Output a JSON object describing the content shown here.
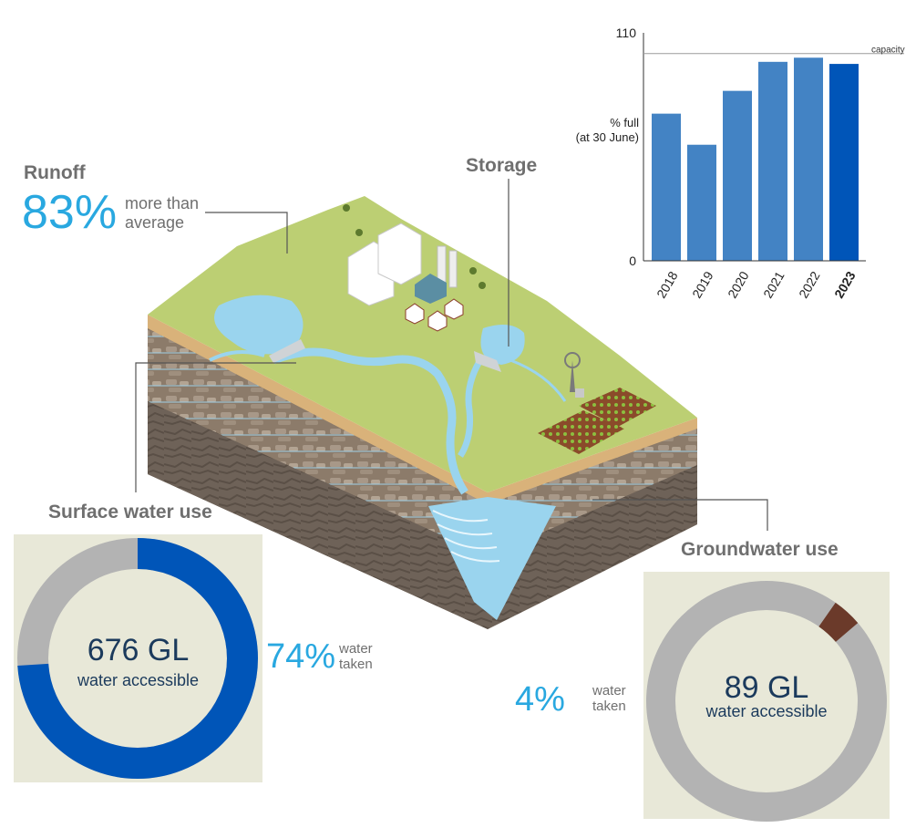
{
  "runoff": {
    "title": "Runoff",
    "value": "83%",
    "desc_line1": "more than",
    "desc_line2": "average"
  },
  "storage": {
    "title": "Storage"
  },
  "surface": {
    "title": "Surface water use",
    "volume": "676 GL",
    "volume_label": "water accessible",
    "taken_pct": "74%",
    "taken_line1": "water",
    "taken_line2": "taken",
    "taken_fraction": 0.74
  },
  "ground": {
    "title": "Groundwater use",
    "volume": "89 GL",
    "volume_label": "water accessible",
    "taken_pct": "4%",
    "taken_line1": "water",
    "taken_line2": "taken",
    "taken_fraction": 0.04
  },
  "colors": {
    "accent": "#29a8e0",
    "surface_taken": "#0055b8",
    "ground_taken": "#6b3a2a",
    "untaken": "#b3b3b3",
    "bar": "#4383c4",
    "bar_current": "#0055b8",
    "panel": "#e8e8d8"
  },
  "chart_data": {
    "type": "bar",
    "categories": [
      "2018",
      "2019",
      "2020",
      "2021",
      "2022",
      "2023"
    ],
    "values": [
      71,
      56,
      82,
      96,
      98,
      95
    ],
    "highlight": "2023",
    "ylabel_line1": "% full",
    "ylabel_line2": "(at 30 June)",
    "ylim": [
      0,
      110
    ],
    "yticks": [
      "0",
      "110"
    ],
    "reference_line": {
      "value": 100,
      "label": "capacity"
    },
    "grid": false,
    "legend": "none"
  }
}
